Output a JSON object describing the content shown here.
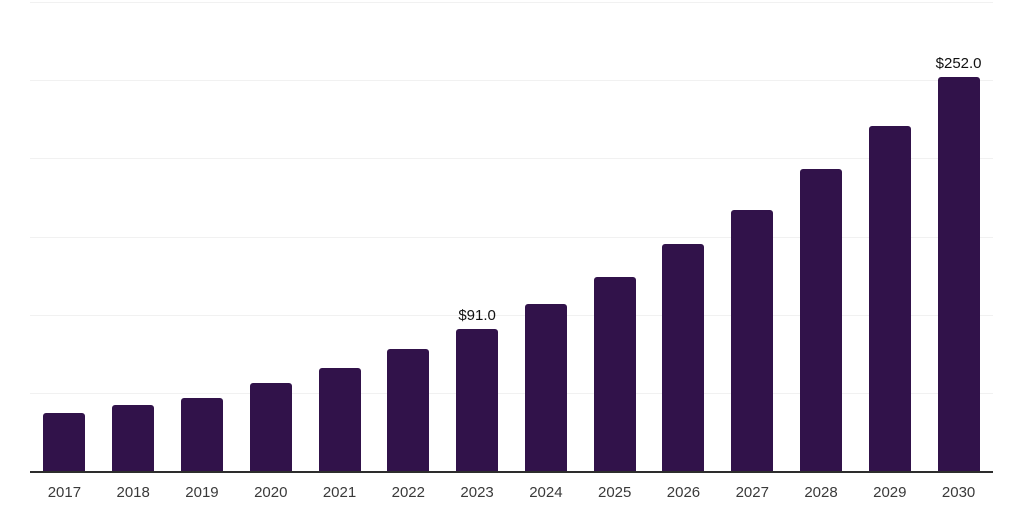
{
  "chart_data": {
    "type": "bar",
    "categories": [
      "2017",
      "2018",
      "2019",
      "2020",
      "2021",
      "2022",
      "2023",
      "2024",
      "2025",
      "2026",
      "2027",
      "2028",
      "2029",
      "2030"
    ],
    "values": [
      37,
      42,
      47,
      56,
      66,
      78,
      91,
      107,
      124,
      145,
      167,
      193,
      221,
      252
    ],
    "point_labels": {
      "2023": "$91.0",
      "2030": "$252.0"
    },
    "title": "",
    "xlabel": "",
    "ylabel": "",
    "ylim": [
      0,
      300
    ],
    "grid_step": 50,
    "grid": true,
    "legend": false,
    "y_tick_labels_shown": false,
    "colors": {
      "bar": "#31124A",
      "axis": "#2d2d2d",
      "grid": "#f1f1f1",
      "x_tick_label": "#3a3a3a",
      "point_label": "#111111",
      "background": "#ffffff"
    }
  }
}
